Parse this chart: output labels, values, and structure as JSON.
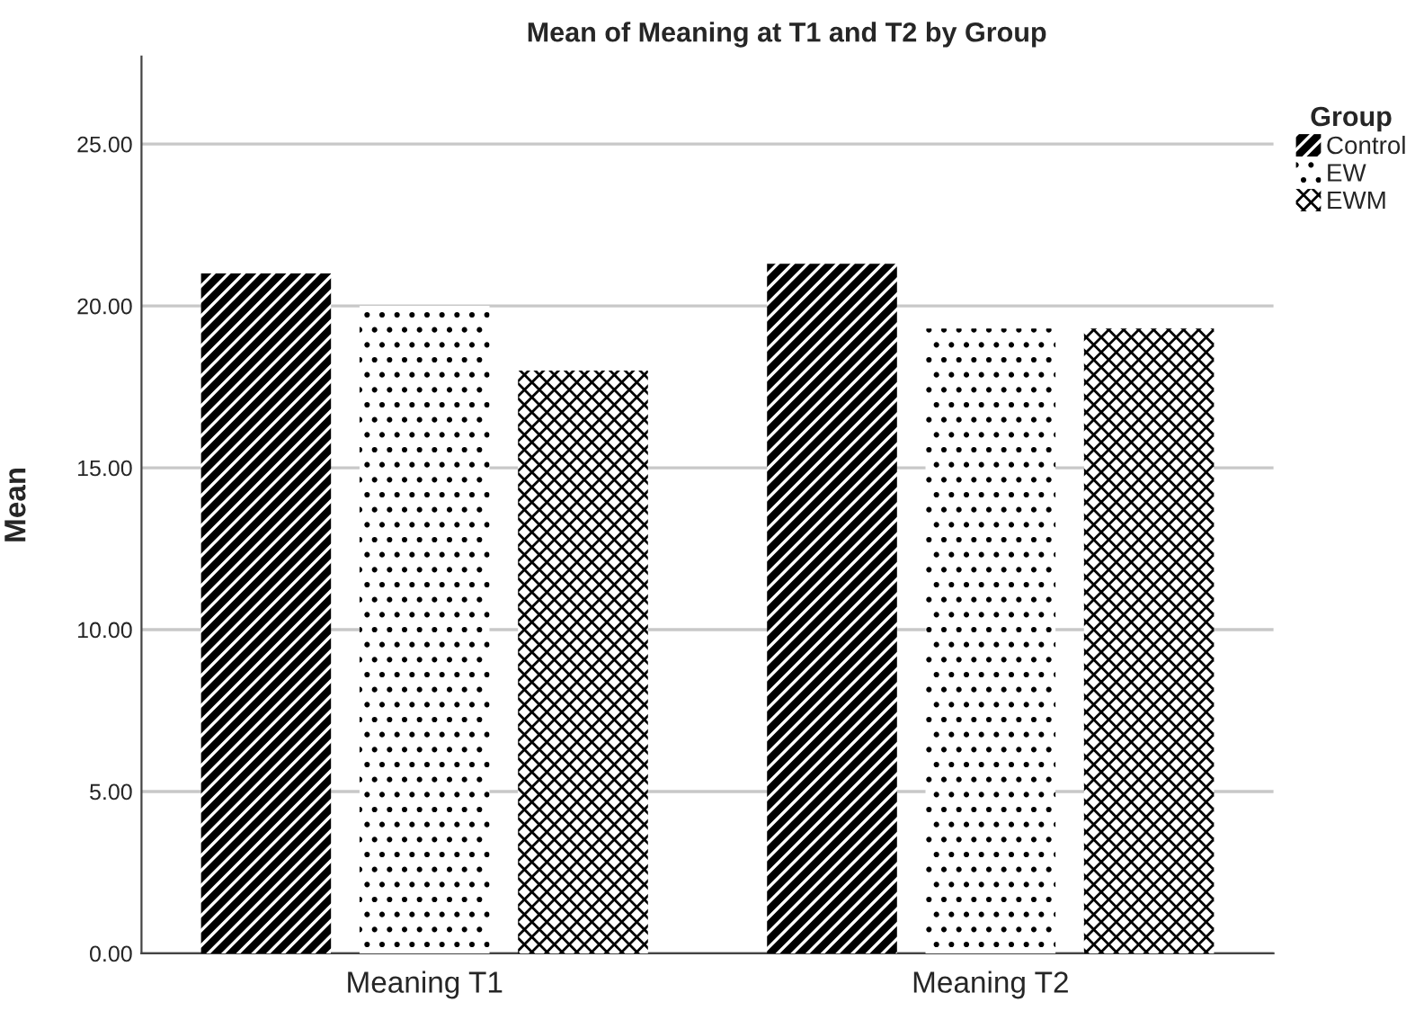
{
  "chart_data": {
    "type": "bar",
    "title": "Mean of Meaning at T1 and T2 by Group",
    "ylabel": "Mean",
    "legend_title": "Group",
    "categories": [
      "Meaning T1",
      "Meaning T2"
    ],
    "series": [
      {
        "name": "Control",
        "color": "#000000",
        "values": [
          21.0,
          21.3
        ]
      },
      {
        "name": "EW",
        "color": "#000000",
        "values": [
          20.0,
          19.3
        ]
      },
      {
        "name": "EWM",
        "color": "#000000",
        "values": [
          18.0,
          19.3
        ]
      }
    ],
    "ylim": [
      0,
      27.7
    ],
    "yticks": [
      {
        "value": 0,
        "label": "0.00"
      },
      {
        "value": 5,
        "label": "5.00"
      },
      {
        "value": 10,
        "label": "10.00"
      },
      {
        "value": 15,
        "label": "15.00"
      },
      {
        "value": 20,
        "label": "20.00"
      },
      {
        "value": 25,
        "label": "25.00"
      }
    ],
    "grid": "y",
    "legend": "top right"
  }
}
